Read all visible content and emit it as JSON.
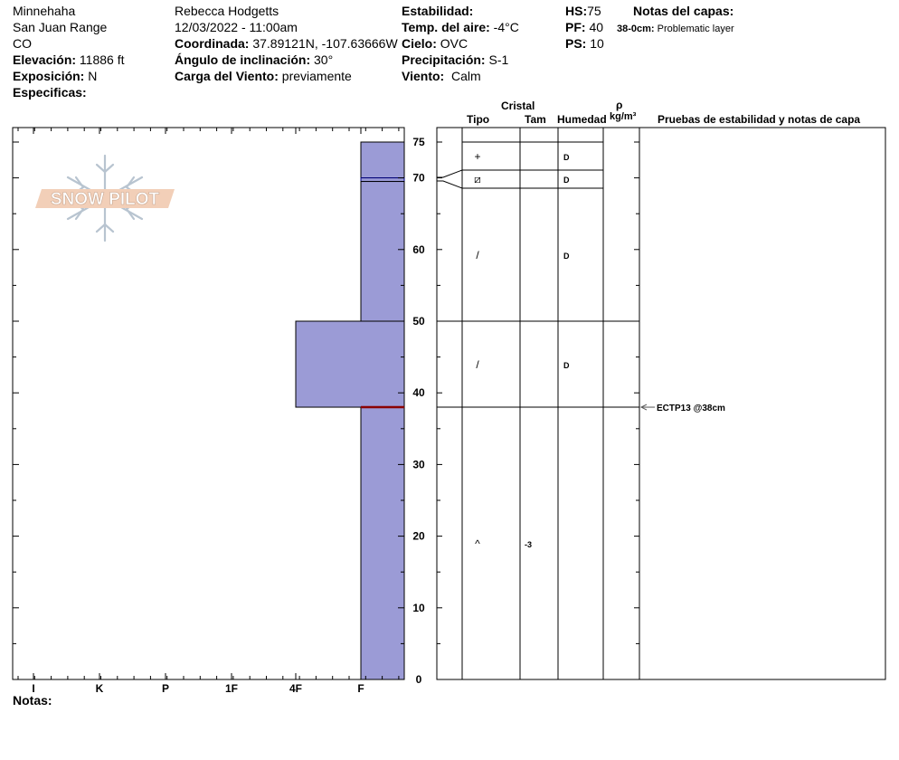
{
  "header": {
    "location": "Minnehaha",
    "range": "San Juan Range",
    "state": "CO",
    "elevation_label": "Elevación:",
    "elevation": "11886 ft",
    "aspect_label": "Exposición:",
    "aspect": "N",
    "specifics_label": "Especificas:",
    "observer": "Rebecca Hodgetts",
    "datetime": "12/03/2022 - 11:00am",
    "coord_label": "Coordinada:",
    "coord": "37.89121N, -107.63666W",
    "slope_label": "Ángulo de inclinación:",
    "slope": "30°",
    "wind_load_label": "Carga del Viento:",
    "wind_load": "previamente",
    "stability_label": "Estabilidad:",
    "air_temp_label": "Temp. del aire:",
    "air_temp": "-4°C",
    "sky_label": "Cielo:",
    "sky": "OVC",
    "precip_label": "Precipitación:",
    "precip": "S-1",
    "wind_label": "Viento:",
    "wind": "Calm",
    "hs_label": "HS:",
    "hs": "75",
    "pf_label": "PF:",
    "pf": "40",
    "ps_label": "PS:",
    "ps": "10",
    "layer_notes_label": "Notas del capas:",
    "layer_note_depth": "38-0cm:",
    "layer_note_text": "Problematic layer"
  },
  "logo_text": "SNOW PILOT",
  "notes_label": "Notas:",
  "columns": {
    "crystal": "Cristal",
    "type": "Tipo",
    "size": "Tam",
    "moisture": "Humedad",
    "rho": "ρ",
    "density_unit": "kg/m³",
    "tests": "Pruebas de estabilidad y notas de capa"
  },
  "colors": {
    "fill": "#9b9bd6",
    "thin_layer": "#000080",
    "problem_layer": "#8b0000",
    "test_arrow": "#555555"
  },
  "chart_data": {
    "type": "bar",
    "xlabel": "",
    "ylabel": "",
    "hardness_ticks": [
      "I",
      "K",
      "P",
      "1F",
      "4F",
      "F"
    ],
    "depth_ticks": [
      0,
      10,
      20,
      30,
      40,
      50,
      60,
      70,
      75
    ],
    "ylim": [
      0,
      75
    ],
    "layers": [
      {
        "top": 75,
        "bottom": 70,
        "hardness": "F",
        "grain": "+",
        "size": "",
        "moisture": "D"
      },
      {
        "top": 70,
        "bottom": 69.5,
        "hardness": "F",
        "grain": "⧄",
        "size": "",
        "moisture": "D"
      },
      {
        "top": 69.5,
        "bottom": 50,
        "hardness": "F",
        "grain": "/",
        "size": "",
        "moisture": "D"
      },
      {
        "top": 50,
        "bottom": 38,
        "hardness": "4F",
        "grain": "/",
        "size": "",
        "moisture": "D"
      },
      {
        "top": 38,
        "bottom": 0,
        "hardness": "F",
        "grain": "^",
        "size": "-3",
        "moisture": ""
      }
    ],
    "problem_layer_depth": 38,
    "tests": [
      {
        "depth": 38,
        "label": "ECTP13 @38cm"
      }
    ]
  }
}
